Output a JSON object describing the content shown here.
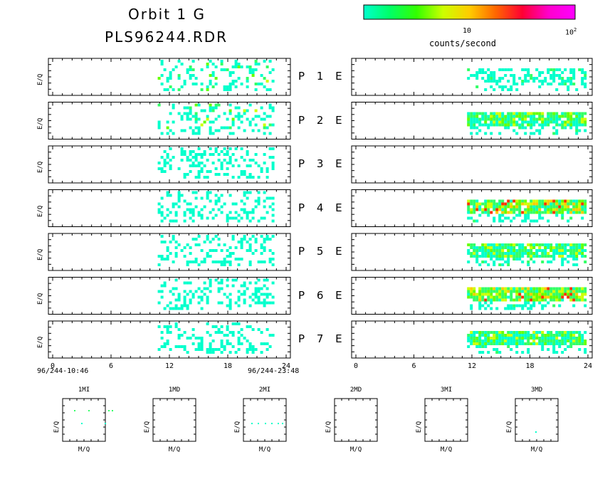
{
  "header": {
    "title_line1": "Orbit 1 G",
    "title_line2": "PLS96244.RDR"
  },
  "colorbar": {
    "tick_10": "10",
    "tick_100_base": "10",
    "tick_100_exp": "2",
    "label": "counts/second",
    "colors": [
      "#00ffcc",
      "#00ff66",
      "#33ff00",
      "#ccff00",
      "#ffcc00",
      "#ff6600",
      "#ff0033",
      "#ff00cc",
      "#ff00ff"
    ]
  },
  "panels": {
    "ylabel": "E/Q",
    "rows": [
      {
        "label": "P 1 E"
      },
      {
        "label": "P 2 E"
      },
      {
        "label": "P 3 E"
      },
      {
        "label": "P 4 E"
      },
      {
        "label": "P 5 E"
      },
      {
        "label": "P 6 E"
      },
      {
        "label": "P 7 E"
      }
    ]
  },
  "time_axis": {
    "ticks": [
      "0",
      "6",
      "12",
      "18",
      "24"
    ],
    "start_label": "96/244-10:46",
    "end_label": "96/244-23:48"
  },
  "small_plots": {
    "xlabel": "M/Q",
    "ylabel": "E/Q",
    "titles": [
      "1MI",
      "1MD",
      "2MI",
      "2MD",
      "3MI",
      "3MD"
    ]
  },
  "chart_data": {
    "type": "heatmap",
    "title": "Orbit 1 G",
    "x_range_hours": [
      0,
      24
    ],
    "x_ticks": [
      0,
      6,
      12,
      18,
      24
    ],
    "color_scale": "log counts/second, 1 to 100",
    "left_column_data_start_hour": 10.8,
    "left_column_data_end_hour": 22.8,
    "right_column_data_start_hour": 11.5,
    "right_column_data_end_hour": 23.8,
    "right_column_empty_rows": [
      "P 3 E"
    ]
  }
}
